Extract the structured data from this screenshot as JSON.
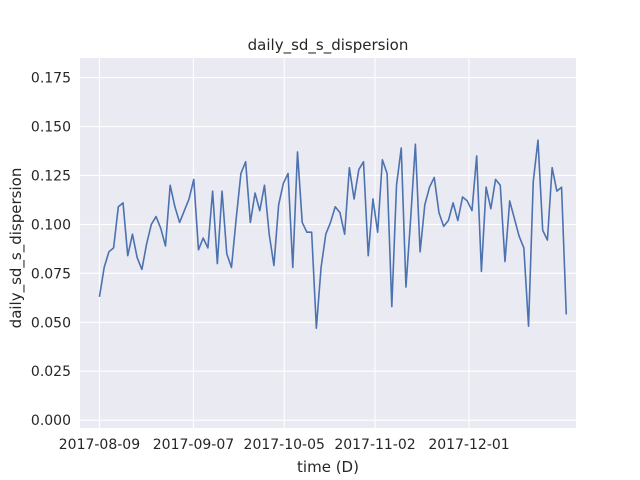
{
  "chart_data": {
    "type": "line",
    "title": "daily_sd_s_dispersion",
    "xlabel": "time (D)",
    "ylabel": "daily_sd_s_dispersion",
    "x_start": "2017-08-09",
    "x_end": "2017-12-31",
    "xlim": [
      "2017-08-03",
      "2018-01-03"
    ],
    "ylim": [
      -0.004,
      0.185
    ],
    "x_ticks": [
      "2017-08-09",
      "2017-09-07",
      "2017-10-05",
      "2017-11-02",
      "2017-12-01"
    ],
    "y_ticks": [
      "0.000",
      "0.025",
      "0.050",
      "0.075",
      "0.100",
      "0.125",
      "0.150",
      "0.175"
    ],
    "grid": true,
    "colors": {
      "background": "#EAEAF2",
      "grid": "#FFFFFF",
      "line": "#4C72B0",
      "text": "#262626"
    },
    "series": [
      {
        "values": [
          0.063,
          0.078,
          0.086,
          0.088,
          0.109,
          0.111,
          0.084,
          0.095,
          0.083,
          0.077,
          0.09,
          0.1,
          0.104,
          0.098,
          0.089,
          0.12,
          0.109,
          0.101,
          0.107,
          0.113,
          0.123,
          0.087,
          0.093,
          0.088,
          0.117,
          0.08,
          0.117,
          0.085,
          0.078,
          0.103,
          0.126,
          0.132,
          0.101,
          0.116,
          0.107,
          0.12,
          0.095,
          0.079,
          0.11,
          0.121,
          0.126,
          0.078,
          0.137,
          0.101,
          0.096,
          0.096,
          0.047,
          0.078,
          0.095,
          0.101,
          0.109,
          0.106,
          0.095,
          0.129,
          0.113,
          0.128,
          0.132,
          0.084,
          0.113,
          0.096,
          0.133,
          0.126,
          0.058,
          0.12,
          0.139,
          0.068,
          0.103,
          0.141,
          0.086,
          0.11,
          0.119,
          0.124,
          0.106,
          0.099,
          0.102,
          0.111,
          0.102,
          0.114,
          0.112,
          0.107,
          0.135,
          0.076,
          0.119,
          0.108,
          0.123,
          0.12,
          0.081,
          0.112,
          0.103,
          0.094,
          0.088,
          0.048,
          0.122,
          0.143,
          0.097,
          0.092,
          0.129,
          0.117,
          0.119,
          0.054
        ]
      }
    ]
  }
}
